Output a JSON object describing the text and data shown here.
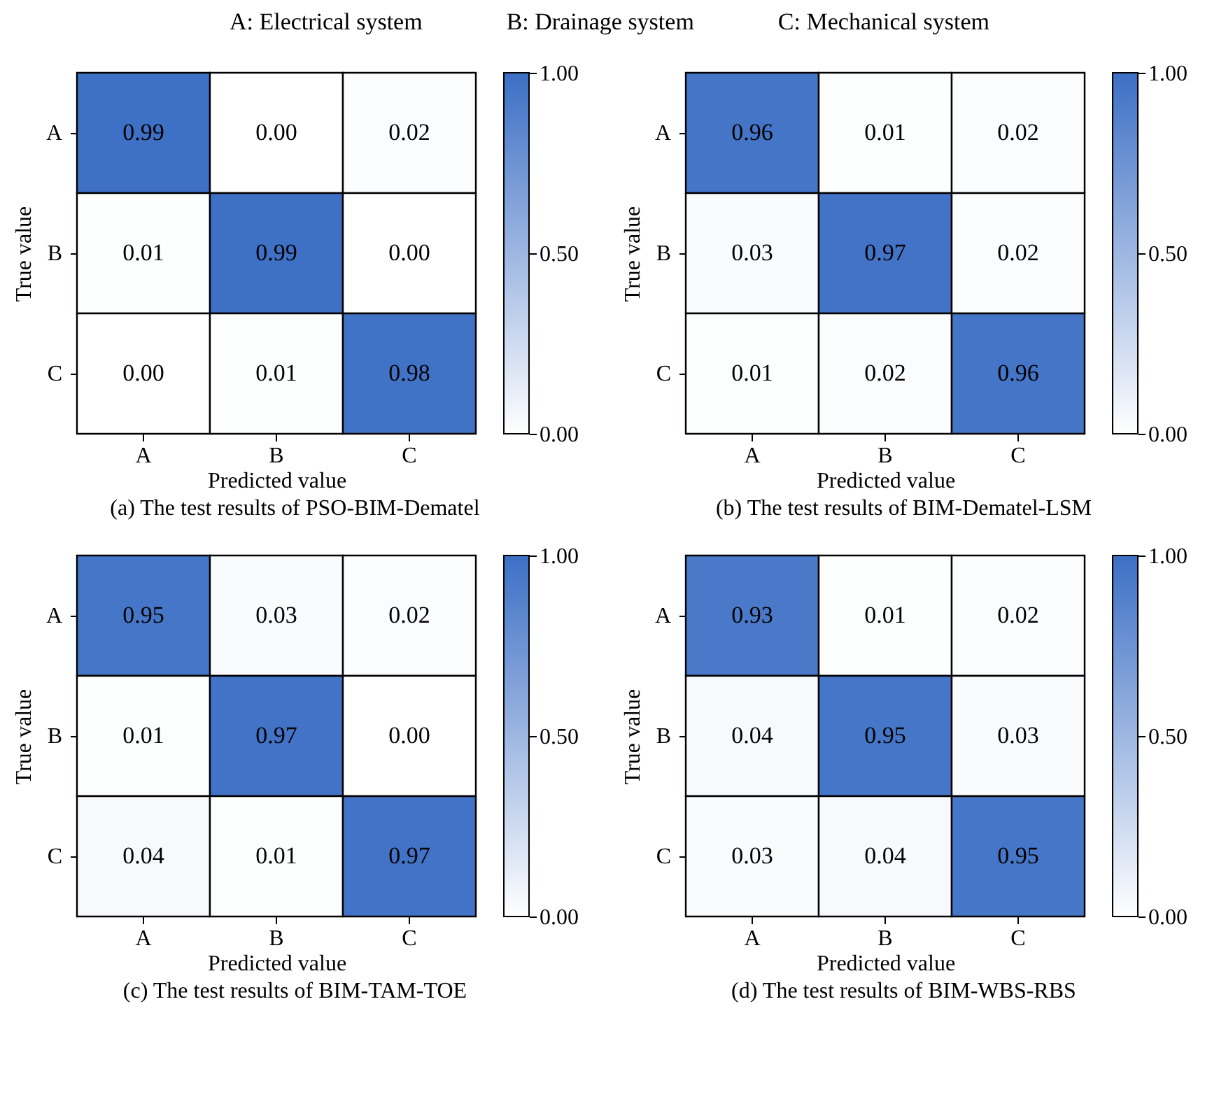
{
  "chart_data": [
    {
      "type": "heatmap",
      "title": "(a) The test results of PSO-BIM-Dematel",
      "xlabel": "Predicted value",
      "ylabel": "True value",
      "annotations": [
        "A: Electrical system",
        "B: Drainage system",
        "C: Mechanical system"
      ],
      "categories": [
        "A",
        "B",
        "C"
      ],
      "y_categories": [
        "A",
        "B",
        "C"
      ],
      "cells": [
        [
          0.99,
          0.0,
          0.02
        ],
        [
          0.01,
          0.99,
          0.0
        ],
        [
          0.0,
          0.01,
          0.98
        ]
      ],
      "cell_labels": [
        [
          "0.99",
          "0.00",
          "0.02"
        ],
        [
          "0.01",
          "0.99",
          "0.00"
        ],
        [
          "0.00",
          "0.01",
          "0.98"
        ]
      ],
      "clim": [
        0,
        1
      ],
      "cticks": [
        {
          "value": 0,
          "label": "0.00"
        },
        {
          "value": 0.5,
          "label": "0.50"
        },
        {
          "value": 1,
          "label": "1.00"
        }
      ]
    },
    {
      "type": "heatmap",
      "title": "(b) The test results of BIM-Dematel-LSM",
      "xlabel": "Predicted value",
      "ylabel": "True value",
      "categories": [
        "A",
        "B",
        "C"
      ],
      "y_categories": [
        "A",
        "B",
        "C"
      ],
      "cells": [
        [
          0.96,
          0.01,
          0.02
        ],
        [
          0.03,
          0.97,
          0.02
        ],
        [
          0.01,
          0.02,
          0.96
        ]
      ],
      "cell_labels": [
        [
          "0.96",
          "0.01",
          "0.02"
        ],
        [
          "0.03",
          "0.97",
          "0.02"
        ],
        [
          "0.01",
          "0.02",
          "0.96"
        ]
      ],
      "clim": [
        0,
        1
      ],
      "cticks": [
        {
          "value": 0,
          "label": "0.00"
        },
        {
          "value": 0.5,
          "label": "0.50"
        },
        {
          "value": 1,
          "label": "1.00"
        }
      ]
    },
    {
      "type": "heatmap",
      "title": "(c) The test results of BIM-TAM-TOE",
      "xlabel": "Predicted value",
      "ylabel": "True value",
      "categories": [
        "A",
        "B",
        "C"
      ],
      "y_categories": [
        "A",
        "B",
        "C"
      ],
      "cells": [
        [
          0.95,
          0.03,
          0.02
        ],
        [
          0.01,
          0.97,
          0.0
        ],
        [
          0.04,
          0.01,
          0.97
        ]
      ],
      "cell_labels": [
        [
          "0.95",
          "0.03",
          "0.02"
        ],
        [
          "0.01",
          "0.97",
          "0.00"
        ],
        [
          "0.04",
          "0.01",
          "0.97"
        ]
      ],
      "clim": [
        0,
        1
      ],
      "cticks": [
        {
          "value": 0,
          "label": "0.00"
        },
        {
          "value": 0.5,
          "label": "0.50"
        },
        {
          "value": 1,
          "label": "1.00"
        }
      ]
    },
    {
      "type": "heatmap",
      "title": "(d) The test results of BIM-WBS-RBS",
      "xlabel": "Predicted value",
      "ylabel": "True value",
      "categories": [
        "A",
        "B",
        "C"
      ],
      "y_categories": [
        "A",
        "B",
        "C"
      ],
      "cells": [
        [
          0.93,
          0.01,
          0.02
        ],
        [
          0.04,
          0.95,
          0.03
        ],
        [
          0.03,
          0.04,
          0.95
        ]
      ],
      "cell_labels": [
        [
          "0.93",
          "0.01",
          "0.02"
        ],
        [
          "0.04",
          "0.95",
          "0.03"
        ],
        [
          "0.03",
          "0.04",
          "0.95"
        ]
      ],
      "clim": [
        0,
        1
      ],
      "cticks": [
        {
          "value": 0,
          "label": "0.00"
        },
        {
          "value": 0.5,
          "label": "0.50"
        },
        {
          "value": 1,
          "label": "1.00"
        }
      ]
    }
  ]
}
